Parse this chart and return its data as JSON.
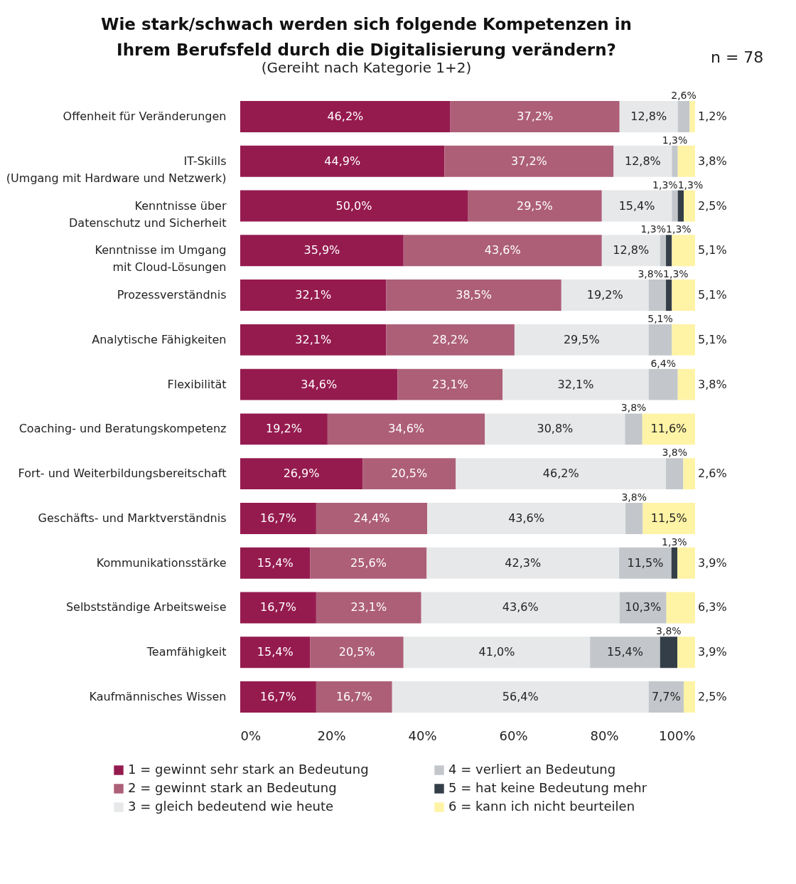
{
  "chart_data": {
    "type": "bar",
    "orientation": "horizontal",
    "stacked": true,
    "title": "Wie stark/schwach werden sich folgende Kompetenzen in\nIhrem Berufsfeld durch die Digitalisierung verändern?",
    "subtitle": "(Gereiht nach Kategorie 1+2)",
    "annotations": [
      "n = 78"
    ],
    "categories": [
      "Offenheit für Veränderungen",
      "IT-Skills\n(Umgang mit Hardware und Netzwerk)",
      "Kenntnisse über\nDatenschutz und Sicherheit",
      "Kenntnisse im Umgang\nmit Cloud-Lösungen",
      "Prozessverständnis",
      "Analytische Fähigkeiten",
      "Flexibilität",
      "Coaching- und Beratungskompetenz",
      "Fort- und Weiterbildungsbereitschaft",
      "Geschäfts- und Marktverständnis",
      "Kommunikationsstärke",
      "Selbstständige Arbeitsweise",
      "Teamfähigkeit",
      "Kaufmännisches Wissen"
    ],
    "xlim": [
      0,
      100
    ],
    "xticks": [
      {
        "value": 0,
        "label": "0%"
      },
      {
        "value": 20,
        "label": "20%"
      },
      {
        "value": 40,
        "label": "40%"
      },
      {
        "value": 60,
        "label": "60%"
      },
      {
        "value": 80,
        "label": "80%"
      },
      {
        "value": 100,
        "label": "100%"
      }
    ],
    "grid": false,
    "legend": "bottom",
    "data_labels": true,
    "series": [
      {
        "name": "1 = gewinnt sehr stark an Bedeutung",
        "color": "#951b4f",
        "values": [
          46.2,
          44.9,
          50.0,
          35.9,
          32.1,
          32.1,
          34.6,
          19.2,
          26.9,
          16.7,
          15.4,
          16.7,
          15.4,
          16.7
        ],
        "value_labels": [
          "46,2%",
          "44,9%",
          "50,0%",
          "35,9%",
          "32,1%",
          "32,1%",
          "34,6%",
          "19,2%",
          "26,9%",
          "16,7%",
          "15,4%",
          "16,7%",
          "15,4%",
          "16,7%"
        ]
      },
      {
        "name": "2 = gewinnt stark an Bedeutung",
        "color": "#ad5f78",
        "values": [
          37.2,
          37.2,
          29.5,
          43.6,
          38.5,
          28.2,
          23.1,
          34.6,
          20.5,
          24.4,
          25.6,
          23.1,
          20.5,
          16.7
        ],
        "value_labels": [
          "37,2%",
          "37,2%",
          "29,5%",
          "43,6%",
          "38,5%",
          "28,2%",
          "23,1%",
          "34,6%",
          "20,5%",
          "24,4%",
          "25,6%",
          "23,1%",
          "20,5%",
          "16,7%"
        ]
      },
      {
        "name": "3 = gleich bedeutend wie heute",
        "color": "#e7e8ea",
        "values": [
          12.8,
          12.8,
          15.4,
          12.8,
          19.2,
          29.5,
          32.1,
          30.8,
          46.2,
          43.6,
          42.3,
          43.6,
          41.0,
          56.4
        ],
        "value_labels": [
          "12,8%",
          "12,8%",
          "15,4%",
          "12,8%",
          "19,2%",
          "29,5%",
          "32,1%",
          "30,8%",
          "46,2%",
          "43,6%",
          "42,3%",
          "43,6%",
          "41,0%",
          "56,4%"
        ]
      },
      {
        "name": "4 = verliert an Bedeutung",
        "color": "#c3c7cb",
        "values": [
          2.6,
          1.3,
          1.3,
          1.3,
          3.8,
          5.1,
          6.4,
          3.8,
          3.8,
          3.8,
          11.5,
          10.3,
          15.4,
          7.7
        ],
        "value_labels": [
          "2,6%",
          "1,3%",
          "1,3%",
          "1,3%",
          "3,8%",
          "5,1%",
          "6,4%",
          "3,8%",
          "3,8%",
          "3,8%",
          "11,5%",
          "10,3%",
          "15,4%",
          "7,7%"
        ]
      },
      {
        "name": "5 = hat keine Bedeutung mehr",
        "color": "#343e48",
        "values": [
          null,
          null,
          1.3,
          1.3,
          1.3,
          null,
          null,
          null,
          null,
          null,
          1.3,
          null,
          3.8,
          null
        ],
        "value_labels": [
          null,
          null,
          "1,3%",
          "1,3%",
          "1,3%",
          null,
          null,
          null,
          null,
          null,
          "1,3%",
          null,
          "3,8%",
          null
        ]
      },
      {
        "name": "6 = kann ich nicht beurteilen",
        "color": "#fff3a6",
        "values": [
          1.2,
          3.8,
          2.5,
          5.1,
          5.1,
          5.1,
          3.8,
          11.6,
          2.6,
          11.5,
          3.9,
          6.3,
          3.9,
          2.5
        ],
        "value_labels": [
          "1,2%",
          "3,8%",
          "2,5%",
          "5,1%",
          "5,1%",
          "5,1%",
          "3,8%",
          "11,6%",
          "2,6%",
          "11,5%",
          "3,9%",
          "6,3%",
          "3,9%",
          "2,5%"
        ]
      }
    ]
  }
}
